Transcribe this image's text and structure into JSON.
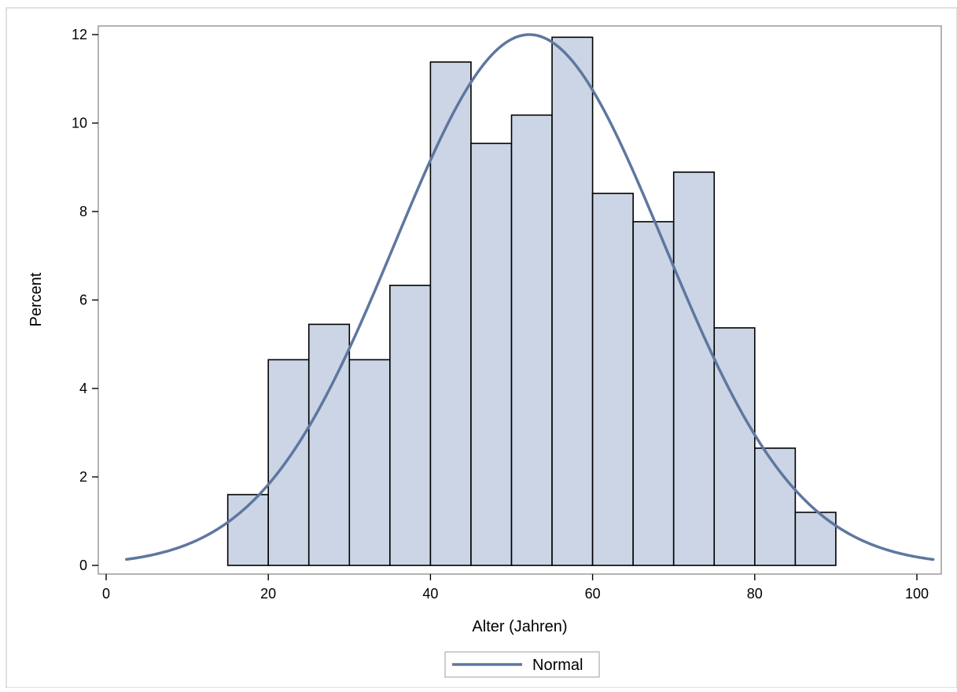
{
  "chart_data": {
    "type": "bar",
    "subtype": "histogram",
    "xlabel": "Alter (Jahren)",
    "ylabel": "Percent",
    "xlim": [
      0,
      102
    ],
    "ylim": [
      0,
      12
    ],
    "x_ticks": [
      "0",
      "20",
      "40",
      "60",
      "80",
      "100"
    ],
    "y_ticks": [
      "0",
      "2",
      "4",
      "6",
      "8",
      "10",
      "12"
    ],
    "bin_width": 5,
    "bins": [
      {
        "start": 15,
        "end": 20,
        "value": 1.6
      },
      {
        "start": 20,
        "end": 25,
        "value": 4.65
      },
      {
        "start": 25,
        "end": 30,
        "value": 5.45
      },
      {
        "start": 30,
        "end": 35,
        "value": 4.65
      },
      {
        "start": 35,
        "end": 40,
        "value": 6.33
      },
      {
        "start": 40,
        "end": 45,
        "value": 11.38
      },
      {
        "start": 45,
        "end": 50,
        "value": 9.54
      },
      {
        "start": 50,
        "end": 55,
        "value": 10.18
      },
      {
        "start": 55,
        "end": 60,
        "value": 11.94
      },
      {
        "start": 60,
        "end": 65,
        "value": 8.41
      },
      {
        "start": 65,
        "end": 70,
        "value": 7.77
      },
      {
        "start": 70,
        "end": 75,
        "value": 8.89
      },
      {
        "start": 75,
        "end": 80,
        "value": 5.37
      },
      {
        "start": 80,
        "end": 85,
        "value": 2.65
      },
      {
        "start": 85,
        "end": 90,
        "value": 1.2
      }
    ],
    "normal_curve": {
      "name": "Normal",
      "mean": 52.2,
      "sd": 16.6,
      "peak": 12.0,
      "x_range": [
        2.5,
        102
      ],
      "color": "#5e77a0"
    },
    "bar_fill": "#cbd5e5",
    "bar_stroke": "#000000",
    "legend_position": "bottom-center",
    "grid": false
  }
}
